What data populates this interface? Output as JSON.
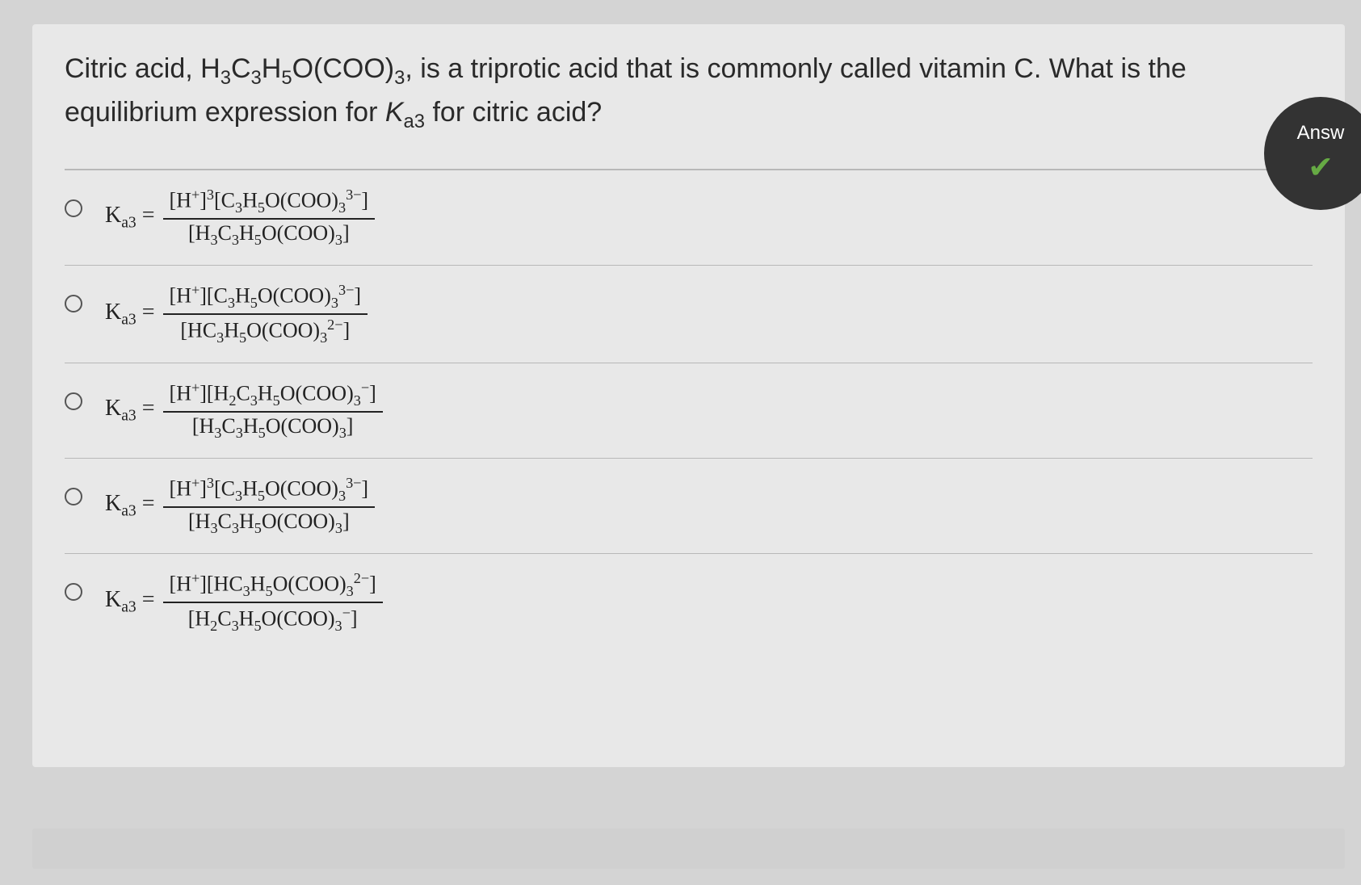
{
  "question_html": "Citric acid, H<span class='sub'>3</span>C<span class='sub'>3</span>H<span class='sub'>5</span>O(COO)<span class='sub'>3</span>, is a triprotic acid that is commonly called vitamin C. What is the equilibrium expression for <i>K</i><span class='sub'>a3</span> for citric acid?",
  "badge_text": "Answ",
  "lhs_html": "<span class='norm'>K</span><span class='sub norm'>a3</span> <span class='norm'>=</span>",
  "options": [
    {
      "num": "[H<span class='sup'>+</span>]<span class='sup'>3</span>[C<span class='sub'>3</span>H<span class='sub'>5</span>O(COO)<span class='sub'>3</span><span class='sup'>3−</span>]",
      "den": "[H<span class='sub'>3</span>C<span class='sub'>3</span>H<span class='sub'>5</span>O(COO)<span class='sub'>3</span>]"
    },
    {
      "num": "[H<span class='sup'>+</span>][C<span class='sub'>3</span>H<span class='sub'>5</span>O(COO)<span class='sub'>3</span><span class='sup'>3−</span>]",
      "den": "[HC<span class='sub'>3</span>H<span class='sub'>5</span>O(COO)<span class='sub'>3</span><span class='sup'>2−</span>]"
    },
    {
      "num": "[H<span class='sup'>+</span>][H<span class='sub'>2</span>C<span class='sub'>3</span>H<span class='sub'>5</span>O(COO)<span class='sub'>3</span><span class='sup'>−</span>]",
      "den": "[H<span class='sub'>3</span>C<span class='sub'>3</span>H<span class='sub'>5</span>O(COO)<span class='sub'>3</span>]"
    },
    {
      "num": "[H<span class='sup'>+</span>]<span class='sup'>3</span>[C<span class='sub'>3</span>H<span class='sub'>5</span>O(COO)<span class='sub'>3</span><span class='sup'>3−</span>]",
      "den": "[H<span class='sub'>3</span>C<span class='sub'>3</span>H<span class='sub'>5</span>O(COO)<span class='sub'>3</span>]"
    },
    {
      "num": "[H<span class='sup'>+</span>][HC<span class='sub'>3</span>H<span class='sub'>5</span>O(COO)<span class='sub'>3</span><span class='sup'>2−</span>]",
      "den": "[H<span class='sub'>2</span>C<span class='sub'>3</span>H<span class='sub'>5</span>O(COO)<span class='sub'>3</span><span class='sup'>−</span>]"
    }
  ],
  "colors": {
    "page_bg": "#d4d4d4",
    "panel_bg": "#e8e8e8",
    "text": "#2a2a2a",
    "divider": "#b8b8b8",
    "badge_bg": "#333333"
  }
}
